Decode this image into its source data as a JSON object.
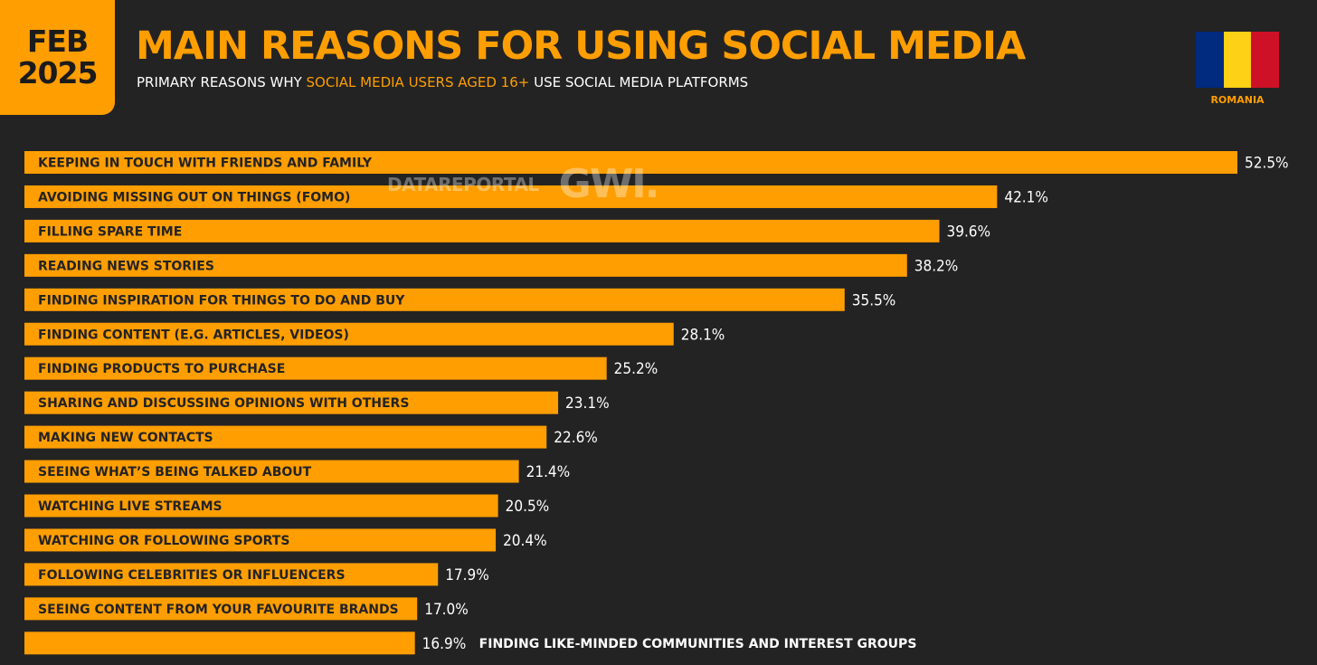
{
  "badge": {
    "month": "FEB",
    "year": "2025"
  },
  "header": {
    "title": "MAIN REASONS FOR USING SOCIAL MEDIA",
    "subtitle_pre": "PRIMARY REASONS WHY ",
    "subtitle_highlight": "SOCIAL MEDIA USERS AGED 16+",
    "subtitle_post": " USE SOCIAL MEDIA PLATFORMS"
  },
  "flag": {
    "country": "ROMANIA",
    "colors": [
      "#002B7F",
      "#FCD116",
      "#CE1126"
    ]
  },
  "watermark": {
    "datareportal": "DATAREPORTAL",
    "gwi": "GWI."
  },
  "colors": {
    "bar": "#FF9E00",
    "background": "#232323",
    "accent": "#FF9E00"
  },
  "chart_data": {
    "type": "bar",
    "orientation": "horizontal",
    "title": "MAIN REASONS FOR USING SOCIAL MEDIA",
    "categories": [
      "KEEPING IN TOUCH WITH FRIENDS AND FAMILY",
      "AVOIDING MISSING OUT ON THINGS (FOMO)",
      "FILLING SPARE TIME",
      "READING NEWS STORIES",
      "FINDING INSPIRATION FOR THINGS TO DO AND BUY",
      "FINDING CONTENT (E.G. ARTICLES, VIDEOS)",
      "FINDING PRODUCTS TO PURCHASE",
      "SHARING AND DISCUSSING OPINIONS WITH OTHERS",
      "MAKING NEW CONTACTS",
      "SEEING WHAT’S BEING TALKED ABOUT",
      "WATCHING LIVE STREAMS",
      "WATCHING OR FOLLOWING SPORTS",
      "FOLLOWING CELEBRITIES OR INFLUENCERS",
      "SEEING CONTENT FROM YOUR FAVOURITE BRANDS",
      "FINDING LIKE-MINDED COMMUNITIES AND INTEREST GROUPS"
    ],
    "values": [
      52.5,
      42.1,
      39.6,
      38.2,
      35.5,
      28.1,
      25.2,
      23.1,
      22.6,
      21.4,
      20.5,
      20.4,
      17.9,
      17.0,
      16.9
    ],
    "value_labels": [
      "52.5%",
      "42.1%",
      "39.6%",
      "38.2%",
      "35.5%",
      "28.1%",
      "25.2%",
      "23.1%",
      "22.6%",
      "21.4%",
      "20.5%",
      "20.4%",
      "17.9%",
      "17.0%",
      "16.9%"
    ],
    "label_outside_bar": [
      false,
      false,
      false,
      false,
      false,
      false,
      false,
      false,
      false,
      false,
      false,
      false,
      false,
      false,
      true
    ],
    "xlim": [
      0,
      52.5
    ],
    "grid": false,
    "legend": "none"
  }
}
